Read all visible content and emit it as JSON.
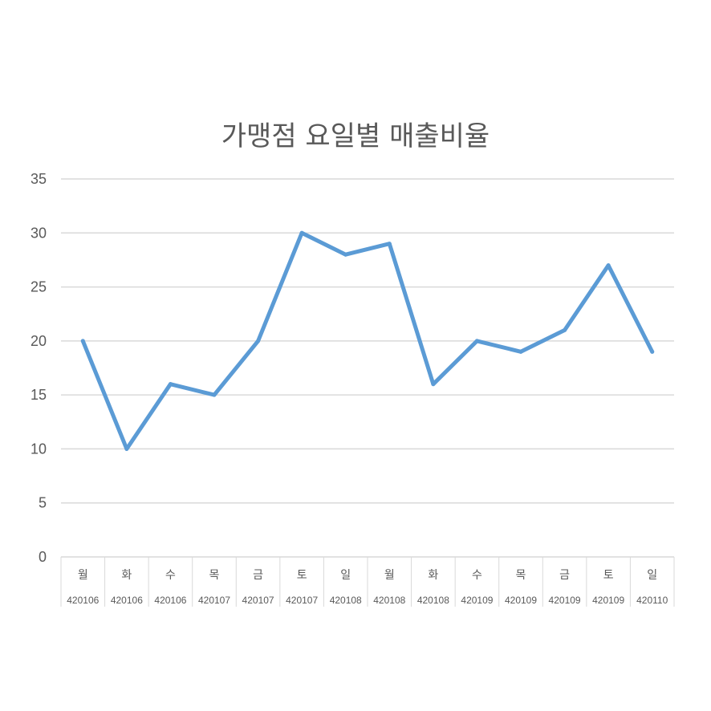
{
  "chart_data": {
    "type": "line",
    "title": "가맹점 요일별 매출비율",
    "ylim": [
      0,
      35
    ],
    "yticks": [
      "0",
      "5",
      "10",
      "15",
      "20",
      "25",
      "30",
      "35"
    ],
    "ytick_values": [
      0,
      5,
      10,
      15,
      20,
      25,
      30,
      35
    ],
    "categories": [
      {
        "day": "월",
        "code": "420106"
      },
      {
        "day": "화",
        "code": "420106"
      },
      {
        "day": "수",
        "code": "420106"
      },
      {
        "day": "목",
        "code": "420107"
      },
      {
        "day": "금",
        "code": "420107"
      },
      {
        "day": "토",
        "code": "420107"
      },
      {
        "day": "일",
        "code": "420108"
      },
      {
        "day": "월",
        "code": "420108"
      },
      {
        "day": "화",
        "code": "420108"
      },
      {
        "day": "수",
        "code": "420109"
      },
      {
        "day": "목",
        "code": "420109"
      },
      {
        "day": "금",
        "code": "420109"
      },
      {
        "day": "토",
        "code": "420109"
      },
      {
        "day": "일",
        "code": "420110"
      }
    ],
    "values": [
      20,
      10,
      16,
      15,
      20,
      30,
      28,
      29,
      16,
      20,
      19,
      21,
      27,
      19
    ],
    "grid": true,
    "line_color": "#5B9BD5",
    "grid_color": "#D9D9D9"
  }
}
